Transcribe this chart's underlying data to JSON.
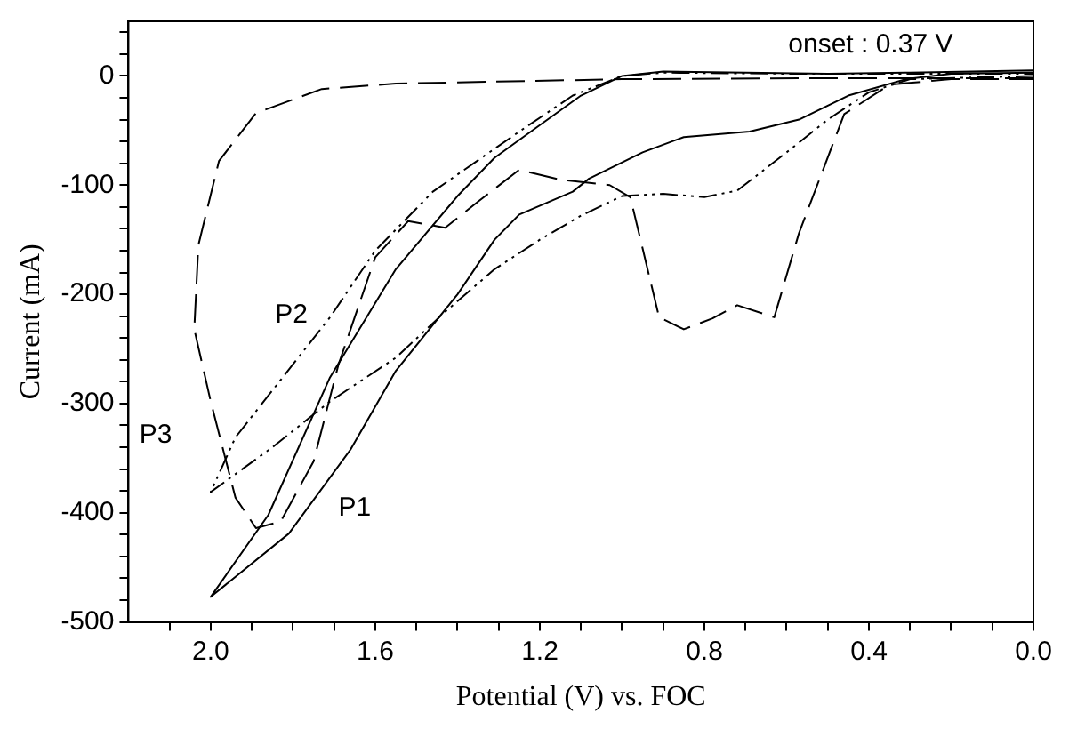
{
  "chart_data": {
    "type": "line",
    "xlabel": "Potential (V) vs. FOC",
    "ylabel": "Current (mA)",
    "xlim": [
      2.2,
      0
    ],
    "ylim": [
      -500,
      50
    ],
    "xticks": [
      {
        "value": 2.1,
        "label": null
      },
      {
        "value": 2,
        "label": "2.0"
      },
      {
        "value": 1.9,
        "label": null
      },
      {
        "value": 1.8,
        "label": null
      },
      {
        "value": 1.7,
        "label": null
      },
      {
        "value": 1.6,
        "label": "1.6"
      },
      {
        "value": 1.5,
        "label": null
      },
      {
        "value": 1.4,
        "label": null
      },
      {
        "value": 1.3,
        "label": null
      },
      {
        "value": 1.2,
        "label": "1.2"
      },
      {
        "value": 1.1,
        "label": null
      },
      {
        "value": 1,
        "label": null
      },
      {
        "value": 0.9,
        "label": null
      },
      {
        "value": 0.8,
        "label": "0.8"
      },
      {
        "value": 0.7,
        "label": null
      },
      {
        "value": 0.6,
        "label": null
      },
      {
        "value": 0.5,
        "label": null
      },
      {
        "value": 0.4,
        "label": "0.4"
      },
      {
        "value": 0.3,
        "label": null
      },
      {
        "value": 0.2,
        "label": null
      },
      {
        "value": 0.1,
        "label": null
      },
      {
        "value": 0,
        "label": "0.0"
      }
    ],
    "yticks": [
      -500,
      {
        "value": -480,
        "label": null
      },
      {
        "value": -460,
        "label": null
      },
      {
        "value": -440,
        "label": null
      },
      {
        "value": -420,
        "label": null
      },
      -400,
      {
        "value": -380,
        "label": null
      },
      {
        "value": -360,
        "label": null
      },
      {
        "value": -340,
        "label": null
      },
      {
        "value": -320,
        "label": null
      },
      -300,
      {
        "value": -280,
        "label": null
      },
      {
        "value": -260,
        "label": null
      },
      {
        "value": -240,
        "label": null
      },
      {
        "value": -220,
        "label": null
      },
      -200,
      {
        "value": -180,
        "label": null
      },
      {
        "value": -160,
        "label": null
      },
      {
        "value": -140,
        "label": null
      },
      {
        "value": -120,
        "label": null
      },
      -100,
      {
        "value": -80,
        "label": null
      },
      {
        "value": -60,
        "label": null
      },
      {
        "value": -40,
        "label": null
      },
      {
        "value": -20,
        "label": null
      },
      0,
      {
        "value": 20,
        "label": null
      },
      {
        "value": 40,
        "label": null
      }
    ],
    "grid": false,
    "legend": false,
    "marker": "none",
    "series": [
      {
        "color": "#000000",
        "line_style": "solid",
        "x": [
          0,
          0.2,
          0.31,
          0.45,
          0.57,
          0.69,
          0.85,
          0.95,
          1.08,
          1.12,
          1.25,
          1.31,
          1.4,
          1.55,
          1.66,
          1.81,
          2,
          1.86,
          1.71,
          1.55,
          1.4,
          1.31,
          1.2,
          1.1,
          1,
          0.9,
          0.7,
          0.5,
          0.3,
          0
        ],
        "values": [
          3,
          2,
          -3,
          -18,
          -40,
          -51,
          -56,
          -70,
          -94,
          -106,
          -127,
          -150,
          -200,
          -270,
          -342,
          -419,
          -477,
          -402,
          -276,
          -177,
          -110,
          -75,
          -45,
          -18,
          0,
          4,
          3,
          2,
          3,
          5
        ]
      },
      {
        "color": "#000000",
        "line_style": "dotted",
        "x": [
          0,
          0.3,
          0.4,
          0.5,
          0.6,
          0.72,
          0.8,
          0.9,
          1,
          1.1,
          1.2,
          1.31,
          1.43,
          1.55,
          1.71,
          1.85,
          2,
          1.94,
          1.71,
          1.6,
          1.46,
          1.25,
          1.12,
          1,
          0.9,
          0.6,
          0.3,
          0
        ],
        "values": [
          0,
          -3,
          -15,
          -40,
          -70,
          -105,
          -111,
          -108,
          -110,
          -128,
          -150,
          -177,
          -216,
          -258,
          -298,
          -340,
          -381,
          -331,
          -221,
          -160,
          -106,
          -51,
          -18,
          0,
          3,
          2,
          2,
          2
        ]
      },
      {
        "color": "#000000",
        "line_style": "dashed",
        "x": [
          0,
          0.5,
          1,
          1.55,
          1.73,
          1.89,
          1.98,
          2.03,
          2.04,
          2,
          1.94,
          1.89,
          1.83,
          1.75,
          1.69,
          1.6,
          1.52,
          1.43,
          1.35,
          1.25,
          1.15,
          1.03,
          0.98,
          0.91,
          0.85,
          0.78,
          0.72,
          0.63,
          0.57,
          0.46,
          0.35,
          0.2,
          0
        ],
        "values": [
          -2,
          -2,
          -3,
          -7,
          -12,
          -34,
          -78,
          -155,
          -232,
          -298,
          -386,
          -414,
          -408,
          -353,
          -265,
          -166,
          -133,
          -139,
          -115,
          -86,
          -95,
          -100,
          -111,
          -221,
          -232,
          -222,
          -210,
          -221,
          -144,
          -35,
          -8,
          -3,
          -3
        ]
      }
    ],
    "annotations": [
      "onset : 0.37 V",
      "P1",
      "P2",
      "P3"
    ]
  }
}
